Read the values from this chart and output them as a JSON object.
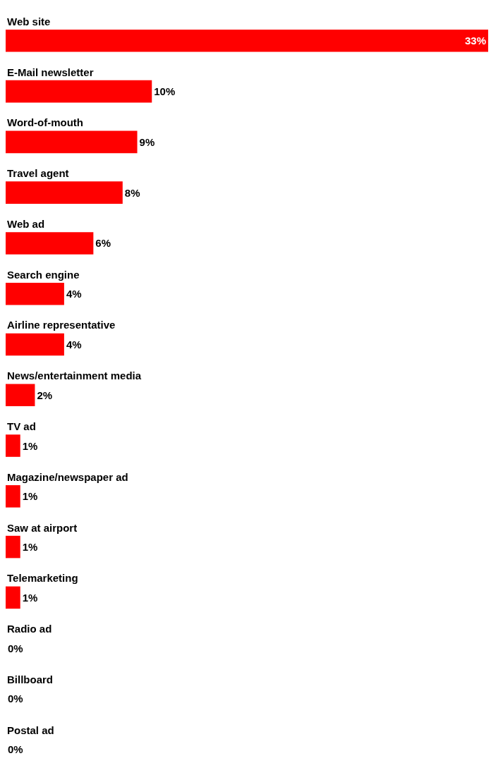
{
  "chart_data": {
    "type": "bar",
    "orientation": "horizontal",
    "categories": [
      "Web site",
      "E-Mail newsletter",
      "Word-of-mouth",
      "Travel agent",
      "Web ad",
      "Search engine",
      "Airline representative",
      "News/entertainment media",
      "TV ad",
      "Magazine/newspaper ad",
      "Saw at airport",
      "Telemarketing",
      "Radio ad",
      "Billboard",
      "Postal ad"
    ],
    "values": [
      33,
      10,
      9,
      8,
      6,
      4,
      4,
      2,
      1,
      1,
      1,
      1,
      0,
      0,
      0
    ],
    "value_labels": [
      "33%",
      "10%",
      "9%",
      "8%",
      "6%",
      "4%",
      "4%",
      "2%",
      "1%",
      "1%",
      "1%",
      "1%",
      "0%",
      "0%",
      "0%"
    ],
    "color": "#ff0000",
    "xlim": [
      0,
      33
    ],
    "tick_labels": false
  }
}
